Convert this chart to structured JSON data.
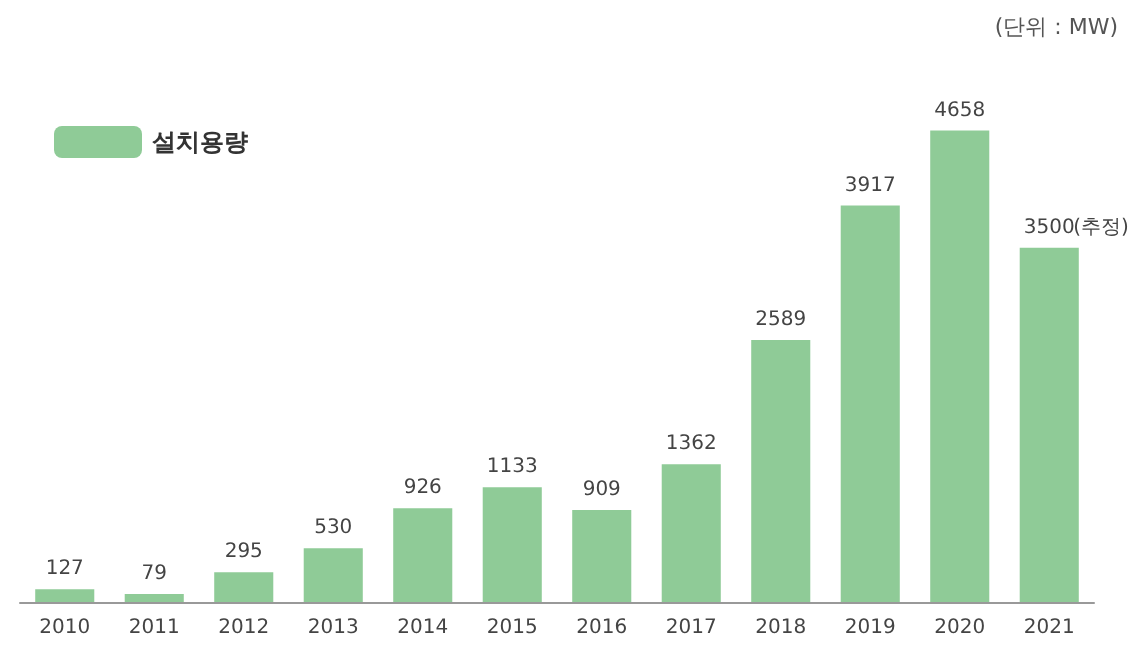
{
  "chart_data": {
    "type": "bar",
    "categories": [
      "2010",
      "2011",
      "2012",
      "2013",
      "2014",
      "2015",
      "2016",
      "2017",
      "2018",
      "2019",
      "2020",
      "2021"
    ],
    "series": [
      {
        "name": "설치용량",
        "color": "#8fcb97",
        "values": [
          127,
          79,
          295,
          530,
          926,
          1133,
          909,
          1362,
          2589,
          3917,
          4658,
          3500
        ]
      }
    ],
    "data_labels": true,
    "annotations": [
      "(단위 : MW)",
      {
        "text": "(추정)",
        "x": "2021",
        "y": 3500
      }
    ],
    "legend": "top left"
  }
}
